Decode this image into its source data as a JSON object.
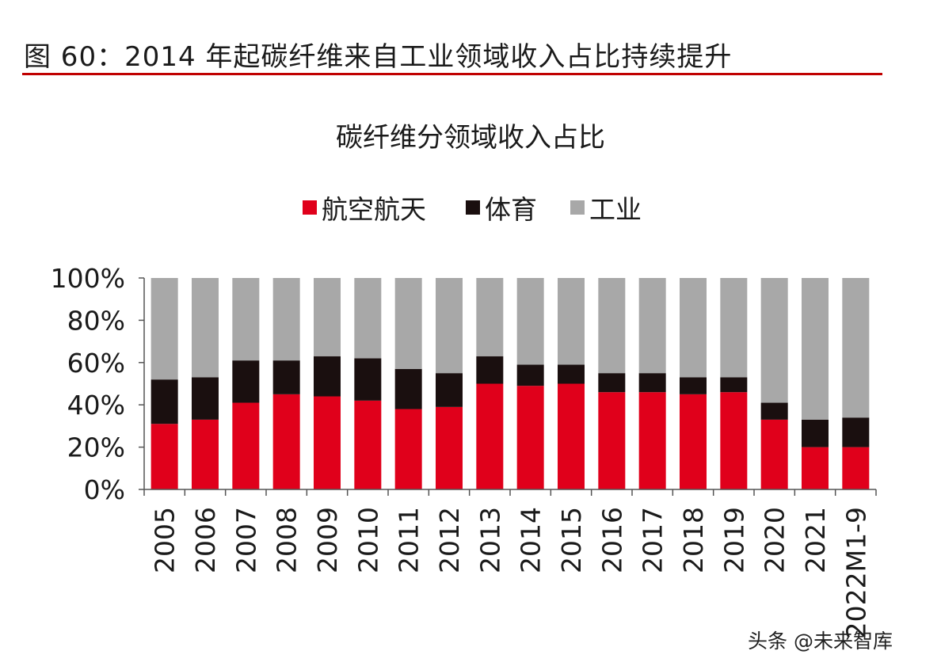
{
  "figure": {
    "caption": "图 60：2014 年起碳纤维来自工业领域收入占比持续提升",
    "accent_color": "#c00000"
  },
  "watermark": "头条 @未来智库",
  "chart_data": {
    "type": "bar",
    "stacked": true,
    "title": "碳纤维分领域收入占比",
    "xlabel": "",
    "ylabel": "",
    "ylim": [
      0,
      100
    ],
    "yticks": [
      "0%",
      "20%",
      "40%",
      "60%",
      "80%",
      "100%"
    ],
    "legend_position": "top",
    "grid": false,
    "categories": [
      "2005",
      "2006",
      "2007",
      "2008",
      "2009",
      "2010",
      "2011",
      "2012",
      "2013",
      "2014",
      "2015",
      "2016",
      "2017",
      "2018",
      "2019",
      "2020",
      "2021",
      "2022M1-9"
    ],
    "series": [
      {
        "name": "航空航天",
        "color": "#e0001b",
        "values": [
          31,
          33,
          41,
          45,
          44,
          42,
          38,
          39,
          50,
          49,
          50,
          46,
          46,
          45,
          46,
          33,
          20,
          20
        ]
      },
      {
        "name": "体育",
        "color": "#1a0f0f",
        "values": [
          21,
          20,
          20,
          16,
          19,
          20,
          19,
          16,
          13,
          10,
          9,
          9,
          9,
          8,
          7,
          8,
          13,
          14
        ]
      },
      {
        "name": "工业",
        "color": "#a8a8a8",
        "values": [
          48,
          47,
          39,
          39,
          37,
          38,
          43,
          45,
          37,
          41,
          41,
          45,
          45,
          47,
          47,
          59,
          67,
          66
        ]
      }
    ]
  }
}
